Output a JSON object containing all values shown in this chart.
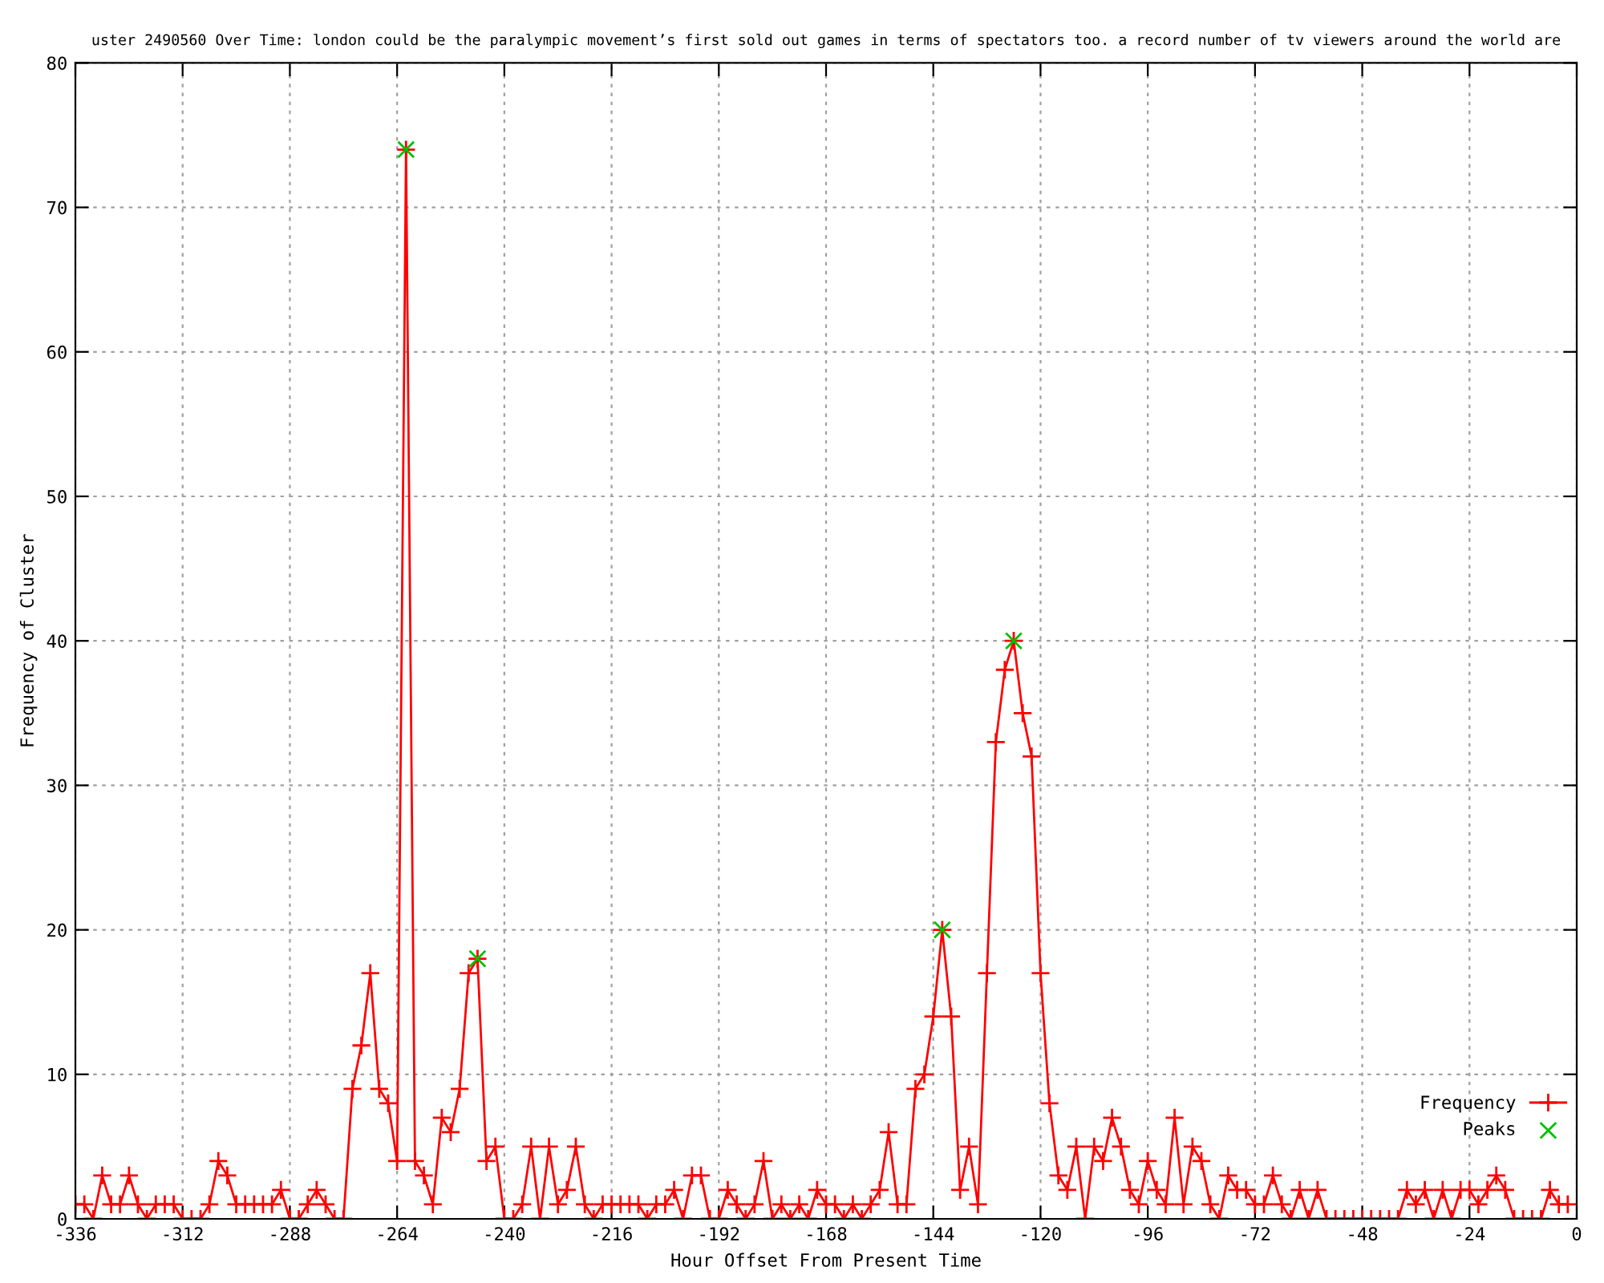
{
  "chart_data": {
    "type": "line",
    "title": "uster 2490560 Over Time: london could be the paralympic movement’s first sold out games in terms of spectators too. a record number of tv viewers around the world are",
    "xlabel": "Hour Offset From Present Time",
    "ylabel": "Frequency of Cluster",
    "xlim": [
      -336,
      0
    ],
    "xticks": [
      -336,
      -312,
      -288,
      -264,
      -240,
      -216,
      -192,
      -168,
      -144,
      -120,
      -96,
      -72,
      -48,
      -24,
      0
    ],
    "ylim": [
      0,
      80
    ],
    "yticks": [
      0,
      10,
      20,
      30,
      40,
      50,
      60,
      70,
      80
    ],
    "grid": true,
    "legend": "bottom right",
    "series": [
      {
        "name": "Frequency",
        "color": "#ff0000",
        "marker": "cross",
        "line_style": "solid",
        "x": [
          -336,
          -334,
          -332,
          -330,
          -328,
          -326,
          -324,
          -322,
          -320,
          -318,
          -316,
          -314,
          -312,
          -310,
          -308,
          -306,
          -304,
          -302,
          -300,
          -298,
          -296,
          -294,
          -292,
          -290,
          -288,
          -286,
          -284,
          -282,
          -280,
          -278,
          -276,
          -274,
          -272,
          -270,
          -268,
          -266,
          -264,
          -262,
          -260,
          -258,
          -256,
          -254,
          -252,
          -250,
          -248,
          -246,
          -244,
          -242,
          -240,
          -238,
          -236,
          -234,
          -232,
          -230,
          -228,
          -226,
          -224,
          -222,
          -220,
          -218,
          -216,
          -214,
          -212,
          -210,
          -208,
          -206,
          -204,
          -202,
          -200,
          -198,
          -196,
          -194,
          -192,
          -190,
          -188,
          -186,
          -184,
          -182,
          -180,
          -178,
          -176,
          -174,
          -172,
          -170,
          -168,
          -166,
          -164,
          -162,
          -160,
          -158,
          -156,
          -154,
          -152,
          -150,
          -148,
          -146,
          -144,
          -142,
          -140,
          -138,
          -136,
          -134,
          -132,
          -130,
          -128,
          -126,
          -124,
          -122,
          -120,
          -118,
          -116,
          -114,
          -112,
          -110,
          -108,
          -106,
          -104,
          -102,
          -100,
          -98,
          -96,
          -94,
          -92,
          -90,
          -88,
          -86,
          -84,
          -82,
          -80,
          -78,
          -76,
          -74,
          -72,
          -70,
          -68,
          -66,
          -64,
          -62,
          -60,
          -58,
          -56,
          -54,
          -52,
          -50,
          -48,
          -46,
          -44,
          -42,
          -40,
          -38,
          -36,
          -34,
          -32,
          -30,
          -28,
          -26,
          -24,
          -22,
          -20,
          -18,
          -16,
          -14,
          -12,
          -10,
          -8,
          -6,
          -4,
          -2
        ],
        "values": [
          1,
          1,
          0,
          3,
          1,
          1,
          3,
          1,
          0,
          1,
          1,
          1,
          0,
          0,
          0,
          1,
          4,
          3,
          1,
          1,
          1,
          1,
          1,
          2,
          0,
          0,
          1,
          2,
          1,
          0,
          0,
          9,
          12,
          17,
          9,
          8,
          4,
          74,
          4,
          3,
          1,
          7,
          6,
          9,
          17,
          18,
          4,
          5,
          0,
          0,
          1,
          5,
          0,
          5,
          1,
          2,
          5,
          1,
          0,
          1,
          1,
          1,
          1,
          1,
          0,
          1,
          1,
          2,
          0,
          3,
          3,
          0,
          0,
          2,
          1,
          0,
          1,
          4,
          0,
          1,
          0,
          1,
          0,
          2,
          1,
          1,
          0,
          1,
          0,
          1,
          2,
          6,
          1,
          1,
          9,
          10,
          14,
          20,
          14,
          2,
          5,
          1,
          17,
          33,
          38,
          40,
          35,
          32,
          17,
          8,
          3,
          2,
          5,
          0,
          5,
          4,
          7,
          5,
          2,
          1,
          4,
          2,
          1,
          7,
          1,
          5,
          4,
          1,
          0,
          3,
          2,
          2,
          1,
          1,
          3,
          1,
          0,
          2,
          0,
          2,
          0,
          0,
          0,
          0,
          0,
          0,
          0,
          0,
          0,
          2,
          1,
          2,
          0,
          2,
          0,
          2,
          2,
          1,
          2,
          3,
          2,
          0,
          0,
          0,
          0,
          2,
          1,
          1
        ]
      },
      {
        "name": "Peaks",
        "type": "scatter",
        "color": "#00c000",
        "marker": "cross",
        "x": [
          -262,
          -246,
          -142,
          -126
        ],
        "values": [
          74,
          18,
          20,
          40
        ]
      }
    ]
  }
}
